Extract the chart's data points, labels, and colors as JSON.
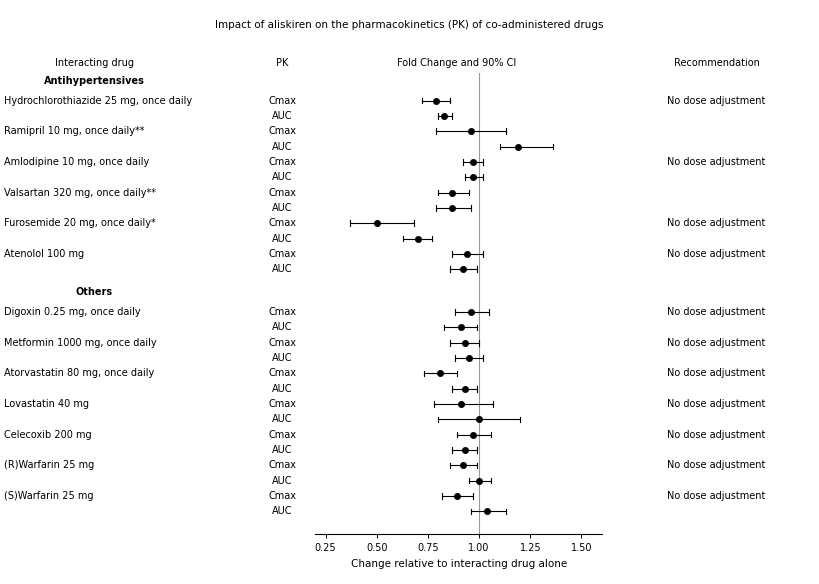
{
  "title": "Impact of aliskiren on the pharmacokinetics (PK) of co-administered drugs",
  "xlabel": "Change relative to interacting drug alone",
  "xlim": [
    0.2,
    1.6
  ],
  "xticks": [
    0.25,
    0.5,
    0.75,
    1.0,
    1.25,
    1.5
  ],
  "xticklabels": [
    "0.25",
    "0.50",
    "0.75",
    "1.00",
    "1.25",
    "1.50"
  ],
  "vline": 1.0,
  "rows": [
    {
      "drug": "Antihypertensives",
      "pk": "",
      "point": null,
      "lo": null,
      "hi": null,
      "rec": "",
      "bold": true
    },
    {
      "drug": "Hydrochlorothiazide 25 mg, once daily",
      "pk": "Cmax",
      "point": 0.79,
      "lo": 0.72,
      "hi": 0.86,
      "rec": "No dose adjustment",
      "bold": false
    },
    {
      "drug": "",
      "pk": "AUC",
      "point": 0.83,
      "lo": 0.8,
      "hi": 0.87,
      "rec": "",
      "bold": false
    },
    {
      "drug": "Ramipril 10 mg, once daily**",
      "pk": "Cmax",
      "point": 0.96,
      "lo": 0.79,
      "hi": 1.13,
      "rec": "",
      "bold": false
    },
    {
      "drug": "",
      "pk": "AUC",
      "point": 1.19,
      "lo": 1.1,
      "hi": 1.36,
      "rec": "",
      "bold": false
    },
    {
      "drug": "Amlodipine 10 mg, once daily",
      "pk": "Cmax",
      "point": 0.97,
      "lo": 0.92,
      "hi": 1.02,
      "rec": "No dose adjustment",
      "bold": false
    },
    {
      "drug": "",
      "pk": "AUC",
      "point": 0.97,
      "lo": 0.93,
      "hi": 1.02,
      "rec": "",
      "bold": false
    },
    {
      "drug": "Valsartan 320 mg, once daily**",
      "pk": "Cmax",
      "point": 0.87,
      "lo": 0.8,
      "hi": 0.95,
      "rec": "",
      "bold": false
    },
    {
      "drug": "",
      "pk": "AUC",
      "point": 0.87,
      "lo": 0.79,
      "hi": 0.96,
      "rec": "",
      "bold": false
    },
    {
      "drug": "Furosemide 20 mg, once daily*",
      "pk": "Cmax",
      "point": 0.5,
      "lo": 0.37,
      "hi": 0.68,
      "rec": "No dose adjustment",
      "bold": false
    },
    {
      "drug": "",
      "pk": "AUC",
      "point": 0.7,
      "lo": 0.63,
      "hi": 0.77,
      "rec": "",
      "bold": false
    },
    {
      "drug": "Atenolol 100 mg",
      "pk": "Cmax",
      "point": 0.94,
      "lo": 0.87,
      "hi": 1.02,
      "rec": "No dose adjustment",
      "bold": false
    },
    {
      "drug": "",
      "pk": "AUC",
      "point": 0.92,
      "lo": 0.86,
      "hi": 0.99,
      "rec": "",
      "bold": false
    },
    {
      "drug": "Others",
      "pk": "",
      "point": null,
      "lo": null,
      "hi": null,
      "rec": "",
      "bold": true
    },
    {
      "drug": "Digoxin 0.25 mg, once daily",
      "pk": "Cmax",
      "point": 0.96,
      "lo": 0.88,
      "hi": 1.05,
      "rec": "No dose adjustment",
      "bold": false
    },
    {
      "drug": "",
      "pk": "AUC",
      "point": 0.91,
      "lo": 0.83,
      "hi": 0.99,
      "rec": "",
      "bold": false
    },
    {
      "drug": "Metformin 1000 mg, once daily",
      "pk": "Cmax",
      "point": 0.93,
      "lo": 0.86,
      "hi": 1.0,
      "rec": "No dose adjustment",
      "bold": false
    },
    {
      "drug": "",
      "pk": "AUC",
      "point": 0.95,
      "lo": 0.88,
      "hi": 1.02,
      "rec": "",
      "bold": false
    },
    {
      "drug": "Atorvastatin 80 mg, once daily",
      "pk": "Cmax",
      "point": 0.81,
      "lo": 0.73,
      "hi": 0.89,
      "rec": "No dose adjustment",
      "bold": false
    },
    {
      "drug": "",
      "pk": "AUC",
      "point": 0.93,
      "lo": 0.87,
      "hi": 0.99,
      "rec": "",
      "bold": false
    },
    {
      "drug": "Lovastatin 40 mg",
      "pk": "Cmax",
      "point": 0.91,
      "lo": 0.78,
      "hi": 1.07,
      "rec": "No dose adjustment",
      "bold": false
    },
    {
      "drug": "",
      "pk": "AUC",
      "point": 1.0,
      "lo": 0.8,
      "hi": 1.2,
      "rec": "",
      "bold": false
    },
    {
      "drug": "Celecoxib 200 mg",
      "pk": "Cmax",
      "point": 0.97,
      "lo": 0.89,
      "hi": 1.06,
      "rec": "No dose adjustment",
      "bold": false
    },
    {
      "drug": "",
      "pk": "AUC",
      "point": 0.93,
      "lo": 0.87,
      "hi": 0.99,
      "rec": "",
      "bold": false
    },
    {
      "drug": "(R)Warfarin 25 mg",
      "pk": "Cmax",
      "point": 0.92,
      "lo": 0.86,
      "hi": 0.99,
      "rec": "No dose adjustment",
      "bold": false
    },
    {
      "drug": "",
      "pk": "AUC",
      "point": 1.0,
      "lo": 0.95,
      "hi": 1.06,
      "rec": "",
      "bold": false
    },
    {
      "drug": "(S)Warfarin 25 mg",
      "pk": "Cmax",
      "point": 0.89,
      "lo": 0.82,
      "hi": 0.97,
      "rec": "No dose adjustment",
      "bold": false
    },
    {
      "drug": "",
      "pk": "AUC",
      "point": 1.04,
      "lo": 0.96,
      "hi": 1.13,
      "rec": "",
      "bold": false
    }
  ],
  "bg_color": "#ffffff",
  "line_color": "#999999",
  "dot_color": "#000000",
  "text_color": "#000000",
  "fontsize": 7.0,
  "title_fontsize": 7.5
}
